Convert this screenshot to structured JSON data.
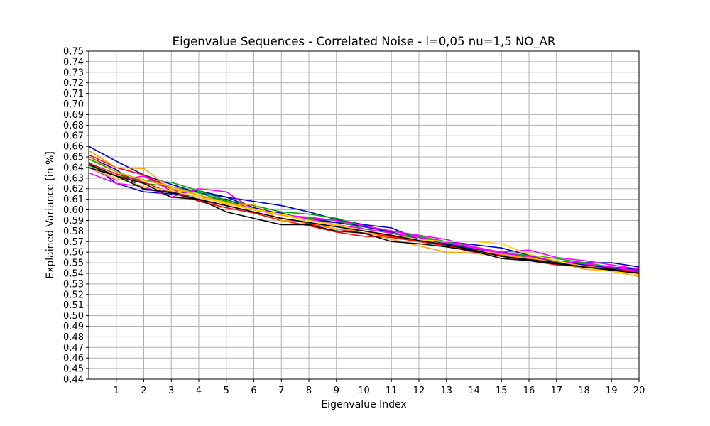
{
  "chart_data": {
    "type": "line",
    "title": "Eigenvalue Sequences - Correlated Noise - l=0,05 nu=1,5 NO_AR",
    "xlabel": "Eigenvalue Index",
    "ylabel": "Explained Variance [in %]",
    "xlim": [
      0,
      20
    ],
    "ylim": [
      0.44,
      0.75
    ],
    "xticks": [
      1,
      2,
      3,
      4,
      5,
      6,
      7,
      8,
      9,
      10,
      11,
      12,
      13,
      14,
      15,
      16,
      17,
      18,
      19,
      20
    ],
    "yticks": [
      0.44,
      0.45,
      0.46,
      0.47,
      0.48,
      0.49,
      0.5,
      0.51,
      0.52,
      0.53,
      0.54,
      0.55,
      0.56,
      0.57,
      0.58,
      0.59,
      0.6,
      0.61,
      0.62,
      0.63,
      0.64,
      0.65,
      0.66,
      0.67,
      0.68,
      0.69,
      0.7,
      0.71,
      0.72,
      0.73,
      0.74,
      0.75
    ],
    "grid": true,
    "legend": "none",
    "x": [
      0,
      1,
      2,
      3,
      4,
      5,
      6,
      7,
      8,
      9,
      10,
      11,
      12,
      13,
      14,
      15,
      16,
      17,
      18,
      19,
      20
    ],
    "series": [
      {
        "color": "#0000cc",
        "values": [
          0.66,
          0.646,
          0.633,
          0.624,
          0.616,
          0.612,
          0.608,
          0.604,
          0.598,
          0.591,
          0.586,
          0.583,
          0.572,
          0.57,
          0.567,
          0.564,
          0.557,
          0.551,
          0.55,
          0.55,
          0.546
        ]
      },
      {
        "color": "#0000cc",
        "values": [
          0.65,
          0.638,
          0.619,
          0.617,
          0.612,
          0.61,
          0.6,
          0.597,
          0.59,
          0.588,
          0.585,
          0.578,
          0.574,
          0.566,
          0.564,
          0.56,
          0.555,
          0.552,
          0.548,
          0.546,
          0.544
        ]
      },
      {
        "color": "#0000cc",
        "values": [
          0.645,
          0.625,
          0.617,
          0.615,
          0.618,
          0.612,
          0.602,
          0.596,
          0.592,
          0.588,
          0.584,
          0.579,
          0.572,
          0.568,
          0.563,
          0.56,
          0.556,
          0.551,
          0.548,
          0.545,
          0.543
        ]
      },
      {
        "color": "#00aa00",
        "values": [
          0.642,
          0.632,
          0.628,
          0.626,
          0.618,
          0.609,
          0.604,
          0.598,
          0.596,
          0.592,
          0.585,
          0.58,
          0.575,
          0.57,
          0.565,
          0.559,
          0.557,
          0.554,
          0.55,
          0.546,
          0.542
        ]
      },
      {
        "color": "#00aa00",
        "values": [
          0.648,
          0.636,
          0.625,
          0.622,
          0.616,
          0.608,
          0.6,
          0.596,
          0.592,
          0.59,
          0.582,
          0.578,
          0.572,
          0.567,
          0.562,
          0.558,
          0.554,
          0.551,
          0.547,
          0.544,
          0.541
        ]
      },
      {
        "color": "#ff0000",
        "values": [
          0.652,
          0.64,
          0.633,
          0.62,
          0.608,
          0.602,
          0.597,
          0.59,
          0.585,
          0.579,
          0.575,
          0.574,
          0.57,
          0.566,
          0.56,
          0.556,
          0.552,
          0.548,
          0.546,
          0.544,
          0.542
        ]
      },
      {
        "color": "#ff0000",
        "values": [
          0.644,
          0.634,
          0.626,
          0.616,
          0.609,
          0.604,
          0.598,
          0.592,
          0.587,
          0.582,
          0.578,
          0.575,
          0.571,
          0.566,
          0.562,
          0.557,
          0.554,
          0.55,
          0.547,
          0.544,
          0.541
        ]
      },
      {
        "color": "#ff00ff",
        "values": [
          0.635,
          0.625,
          0.622,
          0.612,
          0.62,
          0.617,
          0.6,
          0.595,
          0.593,
          0.59,
          0.585,
          0.58,
          0.576,
          0.572,
          0.565,
          0.56,
          0.562,
          0.555,
          0.552,
          0.548,
          0.544
        ]
      },
      {
        "color": "#ff00ff",
        "values": [
          0.64,
          0.628,
          0.632,
          0.618,
          0.612,
          0.606,
          0.6,
          0.596,
          0.591,
          0.586,
          0.582,
          0.578,
          0.574,
          0.569,
          0.564,
          0.559,
          0.556,
          0.552,
          0.549,
          0.546,
          0.542
        ]
      },
      {
        "color": "#ffa500",
        "values": [
          0.656,
          0.64,
          0.639,
          0.62,
          0.614,
          0.605,
          0.605,
          0.59,
          0.588,
          0.582,
          0.58,
          0.572,
          0.566,
          0.56,
          0.559,
          0.556,
          0.555,
          0.55,
          0.544,
          0.542,
          0.537
        ]
      },
      {
        "color": "#ffa500",
        "values": [
          0.65,
          0.636,
          0.628,
          0.622,
          0.614,
          0.607,
          0.601,
          0.595,
          0.59,
          0.585,
          0.58,
          0.576,
          0.572,
          0.567,
          0.562,
          0.558,
          0.554,
          0.55,
          0.547,
          0.544,
          0.54
        ]
      },
      {
        "color": "#ffd700",
        "values": [
          0.64,
          0.63,
          0.622,
          0.618,
          0.612,
          0.606,
          0.6,
          0.596,
          0.59,
          0.586,
          0.58,
          0.576,
          0.572,
          0.57,
          0.57,
          0.568,
          0.558,
          0.552,
          0.546,
          0.542,
          0.539
        ]
      },
      {
        "color": "#000000",
        "values": [
          0.643,
          0.632,
          0.625,
          0.612,
          0.61,
          0.598,
          0.592,
          0.586,
          0.586,
          0.58,
          0.578,
          0.57,
          0.568,
          0.565,
          0.561,
          0.554,
          0.552,
          0.549,
          0.546,
          0.544,
          0.54
        ]
      },
      {
        "color": "#000000",
        "values": [
          0.64,
          0.632,
          0.62,
          0.616,
          0.61,
          0.604,
          0.598,
          0.592,
          0.588,
          0.584,
          0.58,
          0.576,
          0.571,
          0.567,
          0.562,
          0.556,
          0.553,
          0.55,
          0.546,
          0.543,
          0.54
        ]
      }
    ]
  }
}
